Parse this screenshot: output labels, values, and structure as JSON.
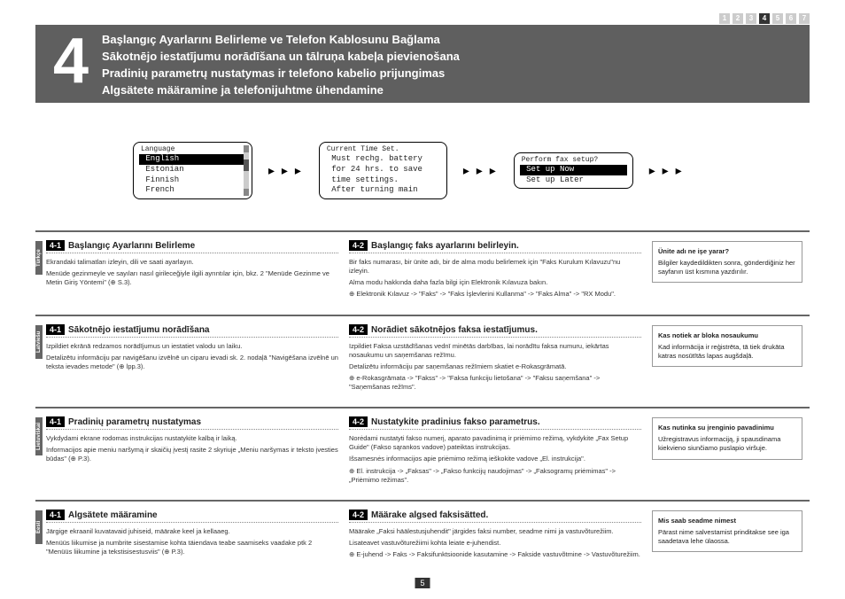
{
  "page_tabs": [
    "1",
    "2",
    "3",
    "4",
    "5",
    "6",
    "7"
  ],
  "active_tab": "4",
  "big_number": "4",
  "header_lines": [
    "Başlangıç Ayarlarını Belirleme ve Telefon Kablosunu Bağlama",
    "Sākotnējo iestatījumu norādīšana un tālruņa kabeļa pievienošana",
    "Pradinių parametrų nustatymas ir telefono kabelio prijungimas",
    "Algsätete määramine ja telefonijuhtme ühendamine"
  ],
  "lcd1": {
    "title": "Language",
    "items": [
      "English",
      "Estonian",
      "Finnish",
      "French"
    ],
    "selected": 0
  },
  "lcd2": {
    "title": "Current Time Set.",
    "lines": [
      "Must rechg. battery",
      "for 24 hrs. to save",
      "time settings.",
      "After turning main"
    ]
  },
  "lcd3": {
    "title": "Perform fax setup?",
    "items": [
      "Set up Now",
      "Set up Later"
    ],
    "selected": 0
  },
  "dots": "▸ ▸ ▸",
  "langs": [
    {
      "tab": "Türkçe",
      "s41_badge": "4-1",
      "s41_title": "Başlangıç Ayarlarını Belirleme",
      "s41_body": [
        "Ekrandaki talimatları izleyin, dili ve saati ayarlayın.",
        "Menüde gezinmeyle ve sayıları nasıl girileceğiyle ilgili ayrıntılar için, bkz. 2 \"Menüde Gezinme ve Metin Giriş Yöntemi\" (⊕ S.3)."
      ],
      "s42_badge": "4-2",
      "s42_title": "Başlangıç faks ayarlarını belirleyin.",
      "s42_body": [
        "Bir faks numarası, bir ünite adı, bir de alma modu belirlemek için \"Faks Kurulum Kılavuzu\"nu izleyin.",
        "Alma modu hakkında daha fazla bilgi için Elektronik Kılavuza bakın.",
        "⊕ Elektronik Kılavuz -> \"Faks\" -> \"Faks İşlevlerini Kullanma\" -> \"Faks Alma\" -> \"RX Modu\"."
      ],
      "box_title": "Ünite adı ne işe yarar?",
      "box_body": "Bilgiler kaydedildikten sonra, gönderdiğiniz her sayfanın üst kısmına yazdırılır."
    },
    {
      "tab": "Latviešu",
      "s41_badge": "4-1",
      "s41_title": "Sākotnējo iestatījumu norādīšana",
      "s41_body": [
        "Izpildiet ekrānā redzamos norādījumus un iestatiet valodu un laiku.",
        "Detalizētu informāciju par navigēšanu izvēlnē un ciparu ievadi sk. 2. nodaļā \"Navigēšana izvēlnē un teksta ievades metode\" (⊕ lpp.3)."
      ],
      "s42_badge": "4-2",
      "s42_title": "Norādiet sākotnējos faksa iestatījumus.",
      "s42_body": [
        "Izpildiet Faksa uzstādīšanas vednī minētās darbības, lai norādītu faksa numuru, iekārtas nosaukumu un saņemšanas režīmu.",
        "Detalizētu informāciju par saņemšanas režīmiem skatiet e-Rokasgrāmatā.",
        "⊕ e-Rokasgrāmata -> \"Fakss\" -> \"Faksa funkciju lietošana\" -> \"Faksu saņemšana\" -> \"Saņemšanas režīms\"."
      ],
      "box_title": "Kas notiek ar bloka nosaukumu",
      "box_body": "Kad informācija ir reģistrēta, tā tiek drukāta katras nosūtītās lapas augšdaļā."
    },
    {
      "tab": "Lietuviškai",
      "s41_badge": "4-1",
      "s41_title": "Pradinių parametrų nustatymas",
      "s41_body": [
        "Vykdydami ekrane rodomas instrukcijas nustatykite kalbą ir laiką.",
        "Informacijos apie meniu naršymą ir skaičių įvestį rasite 2 skyriuje „Meniu naršymas ir teksto įvesties būdas\" (⊕ P.3)."
      ],
      "s42_badge": "4-2",
      "s42_title": "Nustatykite pradinius fakso parametrus.",
      "s42_body": [
        "Norėdami nustatyti fakso numerį, aparato pavadinimą ir priėmimo režimą, vykdykite „Fax Setup Guide\" (Fakso sąrankos vadove) pateiktas instrukcijas.",
        "Išsamesnės informacijos apie priėmimo režimą ieškokite vadove „El. instrukcija\".",
        "⊕ El. instrukcija -> „Faksas\" -> „Fakso funkcijų naudojimas\" -> „Faksogramų priėmimas\" -> „Priėmimo režimas\"."
      ],
      "box_title": "Kas nutinka su įrenginio pavadinimu",
      "box_body": "Užregistravus informaciją, ji spausdinama kiekvieno siunčiamo puslapio viršuje."
    },
    {
      "tab": "Eesti",
      "s41_badge": "4-1",
      "s41_title": "Algsätete määramine",
      "s41_body": [
        "Järgige ekraanil kuvatavaid juhiseid, määrake keel ja kellaaeg.",
        "Menüüs liikumise ja numbrite sisestamise kohta täiendava teabe saamiseks vaadake ptk 2 \"Menüüs liikumine ja tekstisisestusviis\" (⊕ P.3)."
      ],
      "s42_badge": "4-2",
      "s42_title": "Määrake algsed faksisätted.",
      "s42_body": [
        "Määrake „Faksi häälestusjuhendit\" järgides faksi number, seadme nimi ja vastuvõturežiim.",
        "Lisateavet vastuvõturežiimi kohta leiate e-juhendist.",
        "⊕ E-juhend -> Faks -> Faksifunktsioonide kasutamine -> Fakside vastuvõtmine -> Vastuvõturežiim."
      ],
      "box_title": "Mis saab seadme nimest",
      "box_body": "Pärast nime salvestamist prinditakse see iga saadetava lehe ülaossa."
    }
  ],
  "page_number": "5"
}
